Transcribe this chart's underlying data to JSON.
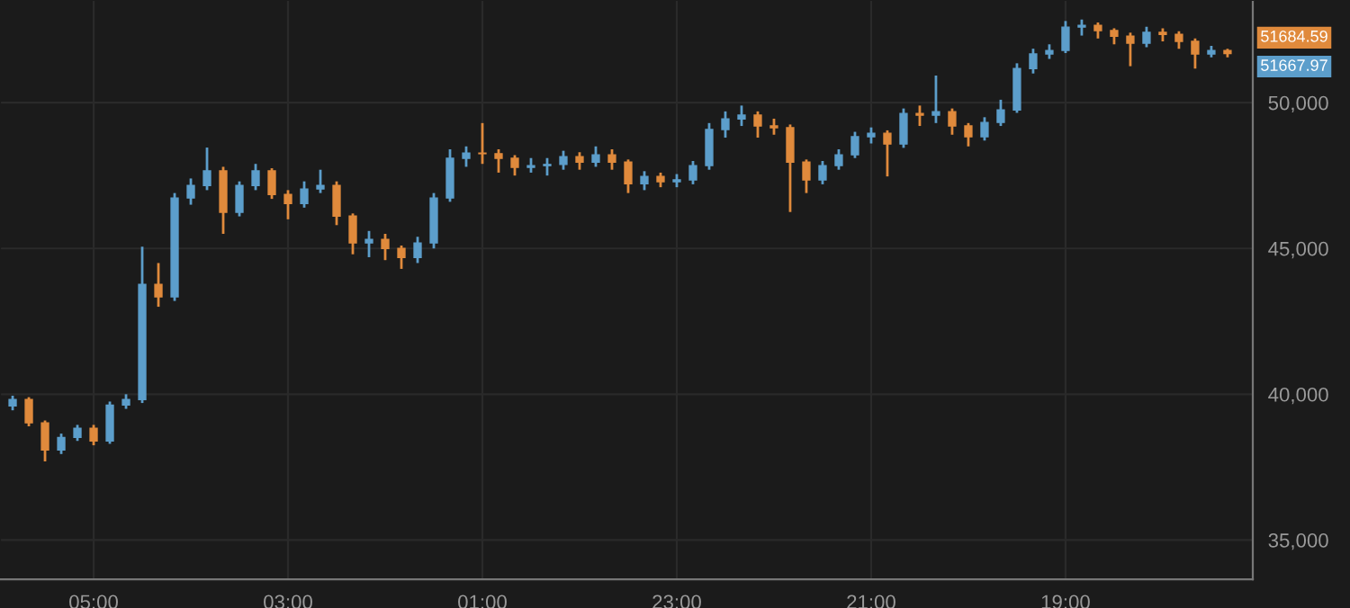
{
  "chart_data": {
    "type": "candlestick",
    "categories": [
      null,
      null,
      null,
      null,
      null,
      "05:00",
      null,
      null,
      null,
      null,
      null,
      null,
      null,
      null,
      null,
      null,
      null,
      "03:00",
      null,
      null,
      null,
      null,
      null,
      null,
      null,
      null,
      null,
      null,
      null,
      "01:00",
      null,
      null,
      null,
      null,
      null,
      null,
      null,
      null,
      null,
      null,
      null,
      "23:00",
      null,
      null,
      null,
      null,
      null,
      null,
      null,
      null,
      null,
      null,
      null,
      "21:00",
      null,
      null,
      null,
      null,
      null,
      null,
      null,
      null,
      null,
      null,
      null,
      "19:00",
      null,
      null,
      null,
      null,
      null,
      null,
      null,
      null,
      null,
      null
    ],
    "ohlc": [
      [
        39600,
        39950,
        39450,
        39820
      ],
      [
        39820,
        39900,
        38900,
        39020
      ],
      [
        39020,
        39100,
        37700,
        38090
      ],
      [
        38090,
        38650,
        37950,
        38520
      ],
      [
        38520,
        38950,
        38400,
        38830
      ],
      [
        38830,
        38950,
        38250,
        38400
      ],
      [
        38400,
        39750,
        38300,
        39630
      ],
      [
        39630,
        40000,
        39500,
        39820
      ],
      [
        39820,
        45060,
        39700,
        43770
      ],
      [
        43770,
        44500,
        43000,
        43340
      ],
      [
        43340,
        46900,
        43200,
        46730
      ],
      [
        46730,
        47400,
        46500,
        47160
      ],
      [
        47160,
        48460,
        47000,
        47660
      ],
      [
        47660,
        47800,
        45500,
        46240
      ],
      [
        46240,
        47300,
        46100,
        47160
      ],
      [
        47160,
        47900,
        47000,
        47660
      ],
      [
        47660,
        47750,
        46700,
        46850
      ],
      [
        46850,
        47000,
        46000,
        46540
      ],
      [
        46540,
        47300,
        46400,
        47040
      ],
      [
        47040,
        47700,
        46900,
        47160
      ],
      [
        47160,
        47300,
        45800,
        46110
      ],
      [
        46110,
        46200,
        44800,
        45190
      ],
      [
        45190,
        45600,
        44700,
        45310
      ],
      [
        45310,
        45500,
        44600,
        45000
      ],
      [
        45000,
        45100,
        44300,
        44690
      ],
      [
        44690,
        45400,
        44500,
        45190
      ],
      [
        45190,
        46900,
        45000,
        46730
      ],
      [
        46730,
        48400,
        46600,
        48090
      ],
      [
        48090,
        48500,
        47800,
        48270
      ],
      [
        48270,
        49300,
        47900,
        48250
      ],
      [
        48250,
        48400,
        47600,
        48090
      ],
      [
        48090,
        48200,
        47500,
        47780
      ],
      [
        47780,
        48100,
        47600,
        47840
      ],
      [
        47840,
        48100,
        47500,
        47880
      ],
      [
        47880,
        48350,
        47700,
        48150
      ],
      [
        48150,
        48300,
        47700,
        47960
      ],
      [
        47960,
        48500,
        47800,
        48210
      ],
      [
        48210,
        48400,
        47700,
        47960
      ],
      [
        47960,
        48050,
        46900,
        47220
      ],
      [
        47220,
        47650,
        47000,
        47470
      ],
      [
        47470,
        47600,
        47100,
        47290
      ],
      [
        47290,
        47550,
        47100,
        47350
      ],
      [
        47350,
        48000,
        47200,
        47840
      ],
      [
        47840,
        49300,
        47700,
        49080
      ],
      [
        49080,
        49700,
        48800,
        49440
      ],
      [
        49440,
        49900,
        49200,
        49570
      ],
      [
        49570,
        49700,
        48800,
        49200
      ],
      [
        49200,
        49450,
        48900,
        49140
      ],
      [
        49140,
        49250,
        46250,
        47960
      ],
      [
        47960,
        48050,
        46900,
        47350
      ],
      [
        47350,
        48000,
        47200,
        47840
      ],
      [
        47840,
        48400,
        47700,
        48210
      ],
      [
        48210,
        49000,
        48100,
        48830
      ],
      [
        48830,
        49150,
        48600,
        48950
      ],
      [
        48950,
        49050,
        47470,
        48580
      ],
      [
        48580,
        49800,
        48450,
        49630
      ],
      [
        49630,
        49900,
        49200,
        49570
      ],
      [
        49570,
        50930,
        49300,
        49690
      ],
      [
        49690,
        49800,
        48900,
        49200
      ],
      [
        49200,
        49300,
        48500,
        48830
      ],
      [
        48830,
        49500,
        48700,
        49320
      ],
      [
        49320,
        50100,
        49200,
        49750
      ],
      [
        49750,
        51350,
        49650,
        51170
      ],
      [
        51170,
        51850,
        51000,
        51670
      ],
      [
        51670,
        52000,
        51500,
        51790
      ],
      [
        51790,
        52800,
        51700,
        52590
      ],
      [
        52590,
        52850,
        52300,
        52650
      ],
      [
        52650,
        52750,
        52200,
        52470
      ],
      [
        52470,
        52550,
        52000,
        52280
      ],
      [
        52280,
        52400,
        51250,
        52040
      ],
      [
        52040,
        52600,
        51900,
        52410
      ],
      [
        52410,
        52550,
        52100,
        52340
      ],
      [
        52340,
        52450,
        51850,
        52100
      ],
      [
        52100,
        52200,
        51170,
        51670
      ],
      [
        51670,
        51950,
        51550,
        51790
      ],
      [
        51790,
        51850,
        51550,
        51680
      ]
    ],
    "colors": [
      "#5c9ecb",
      "#e08a3c",
      "#e08a3c",
      "#5c9ecb",
      "#5c9ecb",
      "#e08a3c",
      "#5c9ecb",
      "#5c9ecb",
      "#5c9ecb",
      "#e08a3c",
      "#5c9ecb",
      "#5c9ecb",
      "#5c9ecb",
      "#e08a3c",
      "#5c9ecb",
      "#5c9ecb",
      "#e08a3c",
      "#e08a3c",
      "#5c9ecb",
      "#5c9ecb",
      "#e08a3c",
      "#e08a3c",
      "#5c9ecb",
      "#e08a3c",
      "#e08a3c",
      "#5c9ecb",
      "#5c9ecb",
      "#5c9ecb",
      "#5c9ecb",
      "#e08a3c",
      "#e08a3c",
      "#e08a3c",
      "#5c9ecb",
      "#5c9ecb",
      "#5c9ecb",
      "#e08a3c",
      "#5c9ecb",
      "#e08a3c",
      "#e08a3c",
      "#5c9ecb",
      "#e08a3c",
      "#5c9ecb",
      "#5c9ecb",
      "#5c9ecb",
      "#5c9ecb",
      "#5c9ecb",
      "#e08a3c",
      "#e08a3c",
      "#e08a3c",
      "#e08a3c",
      "#5c9ecb",
      "#5c9ecb",
      "#5c9ecb",
      "#5c9ecb",
      "#e08a3c",
      "#5c9ecb",
      "#e08a3c",
      "#5c9ecb",
      "#e08a3c",
      "#e08a3c",
      "#5c9ecb",
      "#5c9ecb",
      "#5c9ecb",
      "#5c9ecb",
      "#5c9ecb",
      "#5c9ecb",
      "#5c9ecb",
      "#e08a3c",
      "#e08a3c",
      "#e08a3c",
      "#5c9ecb",
      "#e08a3c",
      "#e08a3c",
      "#e08a3c",
      "#5c9ecb",
      "#e08a3c"
    ],
    "ylim": [
      33650,
      53520
    ],
    "yticks": [
      {
        "value": 35000,
        "label": "35,000"
      },
      {
        "value": 40000,
        "label": "40,000"
      },
      {
        "value": 45000,
        "label": "45,000"
      },
      {
        "value": 50000,
        "label": "50,000"
      }
    ],
    "grid": true,
    "annotations": [
      "51684.59",
      "51667.97"
    ]
  }
}
